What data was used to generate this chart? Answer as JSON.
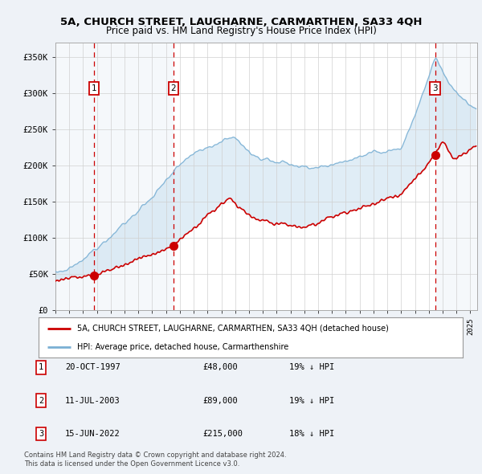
{
  "title": "5A, CHURCH STREET, LAUGHARNE, CARMARTHEN, SA33 4QH",
  "subtitle": "Price paid vs. HM Land Registry's House Price Index (HPI)",
  "background_color": "#eef2f7",
  "plot_bg_color": "#ffffff",
  "ylim": [
    0,
    370000
  ],
  "yticks": [
    0,
    50000,
    100000,
    150000,
    200000,
    250000,
    300000,
    350000
  ],
  "ytick_labels": [
    "£0",
    "£50K",
    "£100K",
    "£150K",
    "£200K",
    "£250K",
    "£300K",
    "£350K"
  ],
  "sale_dates_num": [
    1997.8,
    2003.53,
    2022.46
  ],
  "sale_prices": [
    48000,
    89000,
    215000
  ],
  "sale_labels": [
    "1",
    "2",
    "3"
  ],
  "vline_color": "#cc0000",
  "sale_marker_color": "#cc0000",
  "red_line_color": "#cc0000",
  "blue_line_color": "#7ab0d4",
  "fill_color": "#c8dff0",
  "legend_red_label": "5A, CHURCH STREET, LAUGHARNE, CARMARTHEN, SA33 4QH (detached house)",
  "legend_blue_label": "HPI: Average price, detached house, Carmarthenshire",
  "table_rows": [
    [
      "1",
      "20-OCT-1997",
      "£48,000",
      "19% ↓ HPI"
    ],
    [
      "2",
      "11-JUL-2003",
      "£89,000",
      "19% ↓ HPI"
    ],
    [
      "3",
      "15-JUN-2022",
      "£215,000",
      "18% ↓ HPI"
    ]
  ],
  "footnote1": "Contains HM Land Registry data © Crown copyright and database right 2024.",
  "footnote2": "This data is licensed under the Open Government Licence v3.0."
}
